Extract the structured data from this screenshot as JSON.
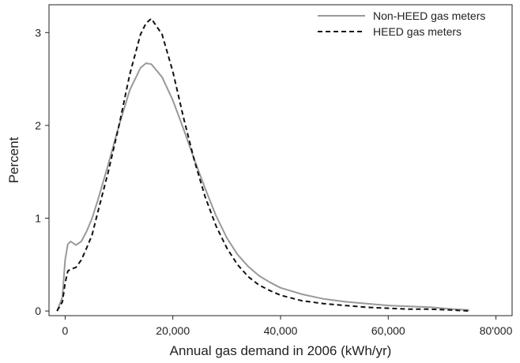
{
  "chart_data": {
    "type": "line",
    "title": "",
    "xlabel": "Annual gas demand in 2006 (kWh/yr)",
    "ylabel": "Percent",
    "xlim": [
      -3000,
      83000
    ],
    "ylim": [
      -0.05,
      3.3
    ],
    "x_ticks": [
      {
        "value": 0,
        "label": "0"
      },
      {
        "value": 20000,
        "label": "20,000"
      },
      {
        "value": 40000,
        "label": "40,000"
      },
      {
        "value": 60000,
        "label": "60,000"
      },
      {
        "value": 80000,
        "label": "80'000"
      }
    ],
    "y_ticks": [
      {
        "value": 0,
        "label": "0"
      },
      {
        "value": 1,
        "label": "1"
      },
      {
        "value": 2,
        "label": "2"
      },
      {
        "value": 3,
        "label": "3"
      }
    ],
    "grid": false,
    "legend_position": "top-right",
    "series": [
      {
        "name": "Non-HEED gas meters",
        "color": "#999999",
        "dash": "solid",
        "x": [
          -1500,
          -500,
          0,
          500,
          1000,
          2000,
          3000,
          4000,
          5000,
          6000,
          8000,
          10000,
          12000,
          14000,
          15000,
          16000,
          18000,
          20000,
          22000,
          24000,
          26000,
          28000,
          30000,
          32000,
          34000,
          36000,
          38000,
          40000,
          44000,
          48000,
          52000,
          56000,
          60000,
          64000,
          68000,
          72000,
          75000
        ],
        "y": [
          0.0,
          0.15,
          0.55,
          0.72,
          0.75,
          0.71,
          0.75,
          0.86,
          1.0,
          1.18,
          1.58,
          2.0,
          2.38,
          2.62,
          2.67,
          2.66,
          2.52,
          2.27,
          1.96,
          1.63,
          1.32,
          1.03,
          0.79,
          0.61,
          0.48,
          0.38,
          0.31,
          0.25,
          0.18,
          0.13,
          0.1,
          0.08,
          0.06,
          0.05,
          0.04,
          0.02,
          0.01
        ]
      },
      {
        "name": "HEED gas meters",
        "color": "#111111",
        "dash": "dashed",
        "x": [
          -1500,
          -500,
          0,
          500,
          1000,
          2000,
          3000,
          4000,
          5000,
          6000,
          8000,
          10000,
          12000,
          14000,
          15000,
          16000,
          18000,
          20000,
          22000,
          24000,
          26000,
          28000,
          30000,
          32000,
          34000,
          36000,
          38000,
          40000,
          44000,
          48000,
          52000,
          56000,
          60000,
          64000,
          68000,
          72000,
          75000
        ],
        "y": [
          0.0,
          0.1,
          0.3,
          0.43,
          0.45,
          0.47,
          0.55,
          0.68,
          0.82,
          1.05,
          1.5,
          2.0,
          2.55,
          2.98,
          3.1,
          3.15,
          2.98,
          2.58,
          2.08,
          1.62,
          1.23,
          0.92,
          0.68,
          0.5,
          0.37,
          0.28,
          0.22,
          0.17,
          0.11,
          0.08,
          0.06,
          0.04,
          0.03,
          0.02,
          0.02,
          0.01,
          0.0
        ]
      }
    ]
  }
}
